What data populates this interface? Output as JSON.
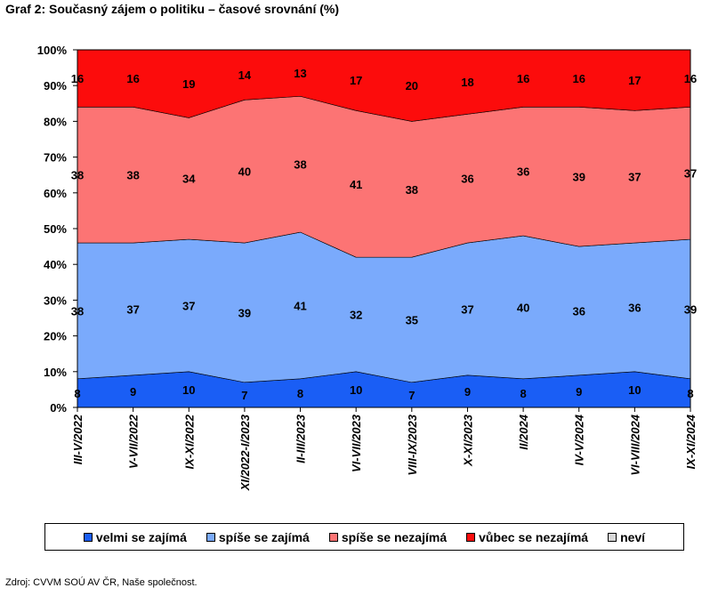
{
  "title": "Graf 2: Současný zájem o politiku – časové srovnání (%)",
  "source": "Zdroj: CVVM SOÚ AV ČR, Naše společnost.",
  "chart_data": {
    "type": "area",
    "stacked": true,
    "categories": [
      "III-V/2022",
      "V-VII/2022",
      "IX-XI/2022",
      "XI/2022-I/2023",
      "II-III/2023",
      "VI-VII/2023",
      "VIII-IX/2023",
      "X-XI/2023",
      "II/2024",
      "IV-V/2024",
      "VI-VIII/2024",
      "IX-XI/2024"
    ],
    "series": [
      {
        "name": "velmi se zajímá",
        "color": "#1a5ef5",
        "values": [
          8,
          9,
          10,
          7,
          8,
          10,
          7,
          9,
          8,
          9,
          10,
          8
        ]
      },
      {
        "name": "spíše se zajímá",
        "color": "#7aaafc",
        "values": [
          38,
          37,
          37,
          39,
          41,
          32,
          35,
          37,
          40,
          36,
          36,
          39
        ]
      },
      {
        "name": "spíše se nezajímá",
        "color": "#fc7474",
        "values": [
          38,
          38,
          34,
          40,
          38,
          41,
          38,
          36,
          36,
          39,
          37,
          37
        ]
      },
      {
        "name": "vůbec se nezajímá",
        "color": "#fc0c0c",
        "values": [
          16,
          16,
          19,
          14,
          13,
          17,
          20,
          18,
          16,
          16,
          17,
          16
        ]
      },
      {
        "name": "neví",
        "color": "#d8d8d8",
        "values": [
          0,
          0,
          0,
          0,
          0,
          0,
          0,
          0,
          0,
          0,
          0,
          0
        ]
      }
    ],
    "yticks": [
      "0%",
      "10%",
      "20%",
      "30%",
      "40%",
      "50%",
      "60%",
      "70%",
      "80%",
      "90%",
      "100%"
    ],
    "ylim": [
      0,
      100
    ],
    "legend_position": "bottom",
    "grid": false
  }
}
